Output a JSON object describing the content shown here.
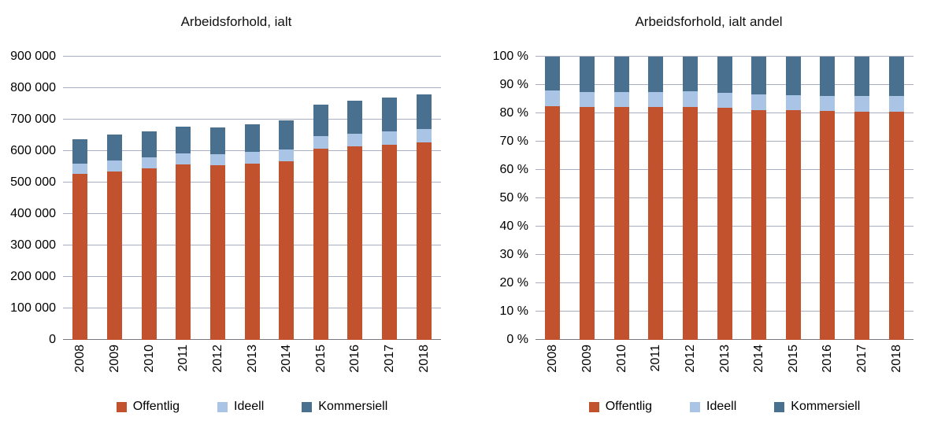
{
  "figure": {
    "background_color": "#ffffff",
    "gridline_color": "#a9aec0",
    "baseline_color": "#77777f"
  },
  "chart_data": [
    {
      "type": "bar",
      "variant": "stacked",
      "value_mode": "absolute",
      "title": "Arbeidsforhold, ialt",
      "categories": [
        "2008",
        "2009",
        "2010",
        "2011",
        "2012",
        "2013",
        "2014",
        "2015",
        "2016",
        "2017",
        "2018"
      ],
      "series": [
        {
          "name": "Offentlig",
          "color": "#c2512e",
          "values": [
            527000,
            536000,
            545000,
            557000,
            555000,
            560000,
            567000,
            607000,
            614000,
            621000,
            628000
          ]
        },
        {
          "name": "Ideell",
          "color": "#a9c4e4",
          "values": [
            34000,
            35000,
            35000,
            36000,
            36000,
            37000,
            38000,
            40000,
            41000,
            42000,
            42000
          ]
        },
        {
          "name": "Kommersiell",
          "color": "#49708e",
          "values": [
            77000,
            81000,
            83000,
            85000,
            83000,
            87000,
            93000,
            101000,
            105000,
            107000,
            109000
          ]
        }
      ],
      "totals": [
        638000,
        652000,
        663000,
        678000,
        674000,
        684000,
        698000,
        748000,
        760000,
        770000,
        779000
      ],
      "ylim": [
        0,
        900000
      ],
      "y_tick_step": 100000,
      "y_tick_labels": [
        "0",
        "100 000",
        "200 000",
        "300 000",
        "400 000",
        "500 000",
        "600 000",
        "700 000",
        "800 000",
        "900 000"
      ],
      "grid": true,
      "legend_position": "bottom"
    },
    {
      "type": "bar",
      "variant": "stacked",
      "value_mode": "percent_of_total",
      "title": "Arbeidsforhold, ialt andel",
      "categories": [
        "2008",
        "2009",
        "2010",
        "2011",
        "2012",
        "2013",
        "2014",
        "2015",
        "2016",
        "2017",
        "2018"
      ],
      "series": [
        {
          "name": "Offentlig",
          "color": "#c2512e",
          "values": [
            527000,
            536000,
            545000,
            557000,
            555000,
            560000,
            567000,
            607000,
            614000,
            621000,
            628000
          ]
        },
        {
          "name": "Ideell",
          "color": "#a9c4e4",
          "values": [
            34000,
            35000,
            35000,
            36000,
            36000,
            37000,
            38000,
            40000,
            41000,
            42000,
            42000
          ]
        },
        {
          "name": "Kommersiell",
          "color": "#49708e",
          "values": [
            77000,
            81000,
            83000,
            85000,
            83000,
            87000,
            93000,
            101000,
            105000,
            107000,
            109000
          ]
        }
      ],
      "ylim": [
        0,
        100
      ],
      "y_tick_step": 10,
      "y_tick_labels": [
        "0 %",
        "10 %",
        "20 %",
        "30 %",
        "40 %",
        "50 %",
        "60 %",
        "70 %",
        "80 %",
        "90 %",
        "100 %"
      ],
      "grid": true,
      "legend_position": "bottom"
    }
  ]
}
